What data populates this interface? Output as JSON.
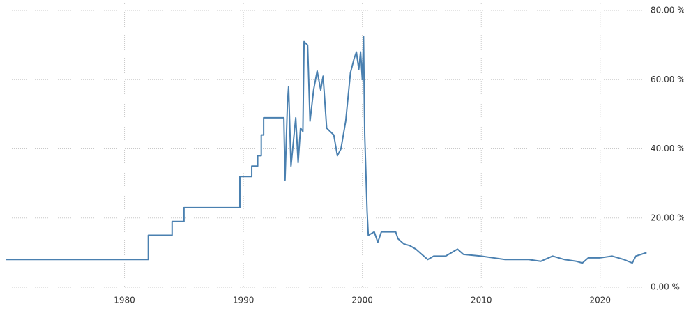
{
  "chart_data": {
    "type": "line",
    "color": "#4a80b0",
    "grid": true,
    "xlim": [
      1970,
      2024
    ],
    "xticks": [
      1980,
      1990,
      2000,
      2010,
      2020
    ],
    "ylim": [
      0,
      80
    ],
    "yticks": [
      {
        "value": 0,
        "label": "0.00 %"
      },
      {
        "value": 20,
        "label": "20.00 %"
      },
      {
        "value": 40,
        "label": "40.00 %"
      },
      {
        "value": 60,
        "label": "60.00 %"
      },
      {
        "value": 80,
        "label": "80.00 %"
      }
    ],
    "x": [
      1970,
      1982,
      1982,
      1984,
      1984,
      1985,
      1985,
      1989.7,
      1989.7,
      1990.7,
      1990.7,
      1991.2,
      1991.2,
      1991.5,
      1991.5,
      1991.7,
      1991.7,
      1993.4,
      1993.5,
      1993.7,
      1993.8,
      1994,
      1994.2,
      1994.4,
      1994.6,
      1994.8,
      1995,
      1995.1,
      1995.4,
      1995.6,
      1995.9,
      1996.2,
      1996.5,
      1996.7,
      1997,
      1997.6,
      1997.9,
      1998.2,
      1998.6,
      1999,
      1999.3,
      1999.5,
      1999.7,
      1999.85,
      2000,
      2000.1,
      2000.2,
      2000.4,
      2000.5,
      2001,
      2001.3,
      2001.6,
      2002,
      2002.8,
      2003,
      2003.5,
      2004,
      2004.5,
      2005,
      2005.5,
      2006,
      2007,
      2007.5,
      2008,
      2008.5,
      2010,
      2011,
      2012,
      2014,
      2015,
      2016,
      2017,
      2018,
      2018.5,
      2019,
      2020,
      2021,
      2022,
      2022.7,
      2023,
      2023.9
    ],
    "values": [
      8,
      8,
      15,
      15,
      19,
      19,
      23,
      23,
      32,
      32,
      35,
      35,
      38,
      38,
      44,
      44,
      49,
      49,
      31,
      53,
      58,
      35,
      42,
      49,
      36,
      46,
      45,
      71,
      70,
      48,
      57,
      62.5,
      57,
      61,
      46,
      44,
      38,
      40,
      48,
      62,
      66,
      68,
      63,
      68,
      60,
      72.5,
      44,
      22,
      15,
      16,
      13,
      16,
      16,
      16,
      14,
      12.5,
      12,
      11,
      9.5,
      8,
      9,
      9,
      10,
      11,
      9.5,
      9,
      8.5,
      8,
      8,
      7.5,
      9,
      8,
      7.5,
      7,
      8.5,
      8.5,
      9,
      8,
      7,
      9,
      10
    ]
  }
}
